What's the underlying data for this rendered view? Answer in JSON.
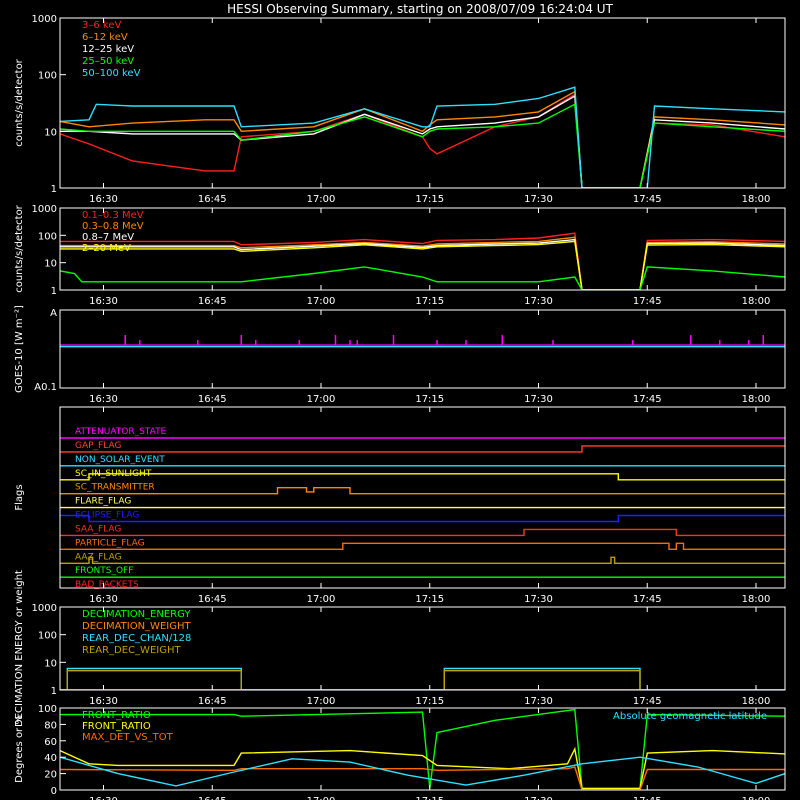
{
  "title": "HESSI Observing Summary, starting on 2008/07/09 16:24:04 UT",
  "time_ticks": [
    {
      "label": "16:30",
      "min": 6
    },
    {
      "label": "16:45",
      "min": 21
    },
    {
      "label": "17:00",
      "min": 36
    },
    {
      "label": "17:15",
      "min": 51
    },
    {
      "label": "17:30",
      "min": 66
    },
    {
      "label": "17:45",
      "min": 81
    },
    {
      "label": "18:00",
      "min": 96
    }
  ],
  "time_range_minutes": [
    0,
    100
  ],
  "colors": {
    "red": "#ff2020",
    "orange": "#ff8800",
    "white": "#ffffff",
    "yellow": "#ffff00",
    "green": "#00ff00",
    "cyan": "#30e0ff",
    "magenta": "#ff00ff",
    "blue": "#2020ff",
    "olive": "#c0a000",
    "darkorange": "#ff6a00"
  },
  "chart_data": [
    {
      "type": "line",
      "ylabel": "counts/s/detector",
      "yscale": "log",
      "ylim": [
        1,
        1000
      ],
      "yticks": [
        "1",
        "10",
        "100",
        "1000"
      ],
      "series": [
        {
          "name": "3–6 keV",
          "color": "#ff2020",
          "x": [
            0,
            4,
            10,
            20,
            24,
            25,
            35,
            42,
            50,
            51,
            52,
            60,
            66,
            71,
            72,
            80,
            82,
            90,
            100
          ],
          "y": [
            9,
            6,
            3,
            2,
            2,
            8,
            10,
            20,
            8,
            5,
            4,
            12,
            18,
            45,
            1,
            1,
            14,
            13,
            8
          ]
        },
        {
          "name": "6–12 keV",
          "color": "#ff8800",
          "x": [
            0,
            4,
            10,
            20,
            24,
            25,
            35,
            42,
            50,
            51,
            52,
            60,
            66,
            71,
            72,
            80,
            82,
            90,
            100
          ],
          "y": [
            15,
            12,
            14,
            16,
            16,
            10,
            12,
            25,
            10,
            13,
            16,
            18,
            22,
            50,
            1,
            1,
            18,
            16,
            13
          ]
        },
        {
          "name": "12–25 keV",
          "color": "#ffffff",
          "x": [
            0,
            4,
            10,
            20,
            24,
            25,
            35,
            42,
            50,
            51,
            52,
            60,
            66,
            71,
            72,
            80,
            82,
            90,
            100
          ],
          "y": [
            10,
            10,
            9,
            9,
            9,
            7,
            9,
            20,
            9,
            11,
            12,
            14,
            18,
            42,
            1,
            1,
            16,
            14,
            11
          ]
        },
        {
          "name": "25–50 keV",
          "color": "#00ff00",
          "x": [
            0,
            4,
            10,
            20,
            24,
            25,
            35,
            42,
            50,
            51,
            52,
            60,
            66,
            71,
            72,
            80,
            82,
            90,
            100
          ],
          "y": [
            11,
            10,
            10,
            10,
            10,
            7,
            10,
            18,
            8,
            10,
            11,
            12,
            14,
            30,
            1,
            1,
            14,
            12,
            10
          ]
        },
        {
          "name": "50–100 keV",
          "color": "#30e0ff",
          "x": [
            0,
            4,
            5,
            10,
            20,
            24,
            25,
            35,
            42,
            50,
            51,
            52,
            60,
            66,
            71,
            72,
            80,
            81,
            82,
            90,
            100
          ],
          "y": [
            15,
            16,
            30,
            28,
            28,
            28,
            12,
            14,
            25,
            12,
            12,
            28,
            30,
            38,
            60,
            1,
            1,
            1,
            28,
            25,
            22
          ]
        }
      ]
    },
    {
      "type": "line",
      "ylabel": "counts/s/detector",
      "yscale": "log",
      "ylim": [
        1,
        1000
      ],
      "yticks": [
        "1",
        "10",
        "100",
        "1000"
      ],
      "series": [
        {
          "name": "0.1–0.3 MeV",
          "color": "#ff2020",
          "x": [
            0,
            24,
            25,
            35,
            42,
            50,
            52,
            60,
            66,
            71,
            72,
            80,
            81,
            90,
            100
          ],
          "y": [
            60,
            60,
            45,
            55,
            70,
            50,
            65,
            70,
            80,
            120,
            1,
            1,
            65,
            70,
            60
          ]
        },
        {
          "name": "0.3–0.8 MeV",
          "color": "#ff8800",
          "x": [
            0,
            24,
            25,
            35,
            42,
            50,
            52,
            60,
            66,
            71,
            72,
            80,
            81,
            90,
            100
          ],
          "y": [
            42,
            42,
            35,
            45,
            55,
            40,
            48,
            55,
            60,
            85,
            1,
            1,
            55,
            58,
            48
          ]
        },
        {
          "name": "0.8–7 MeV",
          "color": "#ffffff",
          "x": [
            0,
            24,
            25,
            35,
            42,
            50,
            52,
            60,
            66,
            71,
            72,
            80,
            81,
            90,
            100
          ],
          "y": [
            38,
            38,
            30,
            40,
            50,
            36,
            42,
            48,
            52,
            70,
            1,
            1,
            50,
            52,
            42
          ]
        },
        {
          "name": "2–20 MeV",
          "color": "#ffff00",
          "x": [
            0,
            24,
            25,
            35,
            42,
            50,
            52,
            60,
            66,
            71,
            72,
            80,
            81,
            90,
            100
          ],
          "y": [
            32,
            32,
            26,
            35,
            45,
            32,
            38,
            42,
            46,
            60,
            1,
            1,
            44,
            46,
            38
          ]
        },
        {
          "name": "",
          "color": "#00ff00",
          "x": [
            0,
            2,
            3,
            24,
            25,
            35,
            42,
            50,
            52,
            60,
            66,
            71,
            72,
            80,
            81,
            90,
            100
          ],
          "y": [
            5,
            4,
            2,
            2,
            2,
            4,
            7,
            3,
            2,
            2,
            2,
            3,
            1,
            1,
            7,
            5,
            3
          ]
        }
      ]
    },
    {
      "type": "line",
      "ylabel": "GOES-10 [W m⁻²]",
      "ytick_top": "A",
      "ytick_bottom": "A0.1",
      "series": [
        {
          "name": "",
          "color": "#ff00ff",
          "x": [
            0,
            100
          ],
          "y": [
            0.55,
            0.55
          ]
        },
        {
          "name": "",
          "color": "#30e0ff",
          "x": [
            0,
            100
          ],
          "y": [
            0.53,
            0.53
          ]
        }
      ],
      "spikes_minutes": [
        9,
        11,
        19,
        25,
        27,
        33,
        38,
        40,
        41,
        46,
        52,
        56,
        61,
        68,
        79,
        87,
        91,
        95,
        97
      ]
    },
    {
      "type": "line",
      "ylabel": "Flags",
      "flags": [
        {
          "name": "ATTENUATOR_STATE",
          "color": "#ff00ff",
          "x": [
            0,
            100
          ],
          "y": [
            0,
            0
          ]
        },
        {
          "name": "GAP_FLAG",
          "color": "#ff4030",
          "x": [
            0,
            72,
            72,
            100
          ],
          "y": [
            0,
            0,
            1,
            1
          ]
        },
        {
          "name": "NON_SOLAR_EVENT",
          "color": "#30e0ff",
          "x": [
            0,
            100
          ],
          "y": [
            0,
            0
          ]
        },
        {
          "name": "SC_IN_SUNLIGHT",
          "color": "#ffff00",
          "x": [
            0,
            4,
            4,
            77,
            77,
            100
          ],
          "y": [
            0,
            0,
            1,
            1,
            0,
            0
          ]
        },
        {
          "name": "SC_TRANSMITTER",
          "color": "#ff8800",
          "x": [
            0,
            30,
            30,
            34,
            34,
            35,
            35,
            40,
            40,
            100
          ],
          "y": [
            0,
            0,
            1,
            1,
            0.3,
            0.3,
            1,
            1,
            0,
            0
          ]
        },
        {
          "name": "FLARE_FLAG",
          "color": "#ffff60",
          "x": [
            0,
            100
          ],
          "y": [
            0,
            0
          ]
        },
        {
          "name": "ECLIPSE_FLAG",
          "color": "#2020ff",
          "x": [
            0,
            4,
            4,
            77,
            77,
            100
          ],
          "y": [
            1,
            1,
            0,
            0,
            1,
            1
          ]
        },
        {
          "name": "SAA_FLAG",
          "color": "#ff3020",
          "x": [
            0,
            64,
            64,
            85,
            85,
            100
          ],
          "y": [
            0,
            0,
            1,
            1,
            0,
            0
          ]
        },
        {
          "name": "PARTICLE_FLAG",
          "color": "#ff6a00",
          "x": [
            0,
            39,
            39,
            72,
            72,
            84,
            84,
            85,
            85,
            86,
            86,
            100
          ],
          "y": [
            0,
            0,
            1,
            1,
            1,
            1,
            0,
            0,
            1,
            1,
            0,
            0
          ]
        },
        {
          "name": "AAZ_FLAG",
          "color": "#c0a000",
          "x": [
            0,
            4,
            4,
            4.5,
            4.5,
            76,
            76,
            76.5,
            76.5,
            100
          ],
          "y": [
            0,
            0,
            1,
            1,
            0,
            0,
            1,
            1,
            0,
            0
          ]
        },
        {
          "name": "FRONTS_OFF",
          "color": "#00ff00",
          "x": [
            0,
            100
          ],
          "y": [
            0,
            0
          ]
        },
        {
          "name": "BAD_PACKETS",
          "color": "#ff2020",
          "x": [
            0,
            100
          ],
          "y": [
            0,
            0
          ]
        }
      ]
    },
    {
      "type": "line",
      "ylabel": "DECIMATION ENERGY or weight",
      "yscale": "log",
      "ylim": [
        1,
        1000
      ],
      "yticks": [
        "1",
        "10",
        "100",
        "1000"
      ],
      "series": [
        {
          "name": "DECIMATION_ENERGY",
          "color": "#00ff00",
          "x": [
            0,
            100
          ],
          "y": [
            1,
            1
          ]
        },
        {
          "name": "DECIMATION_WEIGHT",
          "color": "#ff8800",
          "x": [
            0,
            100
          ],
          "y": [
            1,
            1
          ]
        },
        {
          "name": "REAR_DEC_CHAN/128",
          "color": "#30e0ff",
          "x": [
            0,
            1,
            1,
            25,
            25,
            53,
            53,
            80,
            80,
            100
          ],
          "y": [
            1,
            1,
            6,
            6,
            1,
            1,
            6,
            6,
            1,
            1
          ]
        },
        {
          "name": "REAR_DEC_WEIGHT",
          "color": "#c0a000",
          "x": [
            0,
            1,
            1,
            25,
            25,
            53,
            53,
            80,
            80,
            100
          ],
          "y": [
            1,
            1,
            5,
            5,
            1,
            1,
            5,
            5,
            1,
            1
          ]
        }
      ]
    },
    {
      "type": "line",
      "ylabel": "Degrees or %",
      "ylim": [
        0,
        100
      ],
      "yticks": [
        "0",
        "20",
        "40",
        "60",
        "80",
        "100"
      ],
      "annotation": "Absolute geomagnetic latitude",
      "series": [
        {
          "name": "FRONT_RATIO",
          "color": "#00ff00",
          "x": [
            0,
            24,
            25,
            50,
            51,
            52,
            60,
            71,
            72,
            80,
            81,
            100
          ],
          "y": [
            92,
            92,
            90,
            95,
            2,
            70,
            85,
            98,
            2,
            2,
            92,
            90
          ]
        },
        {
          "name": "FRONT_RATIO",
          "color": "#ffff00",
          "x": [
            0,
            4,
            8,
            24,
            25,
            40,
            50,
            52,
            62,
            70,
            71,
            72,
            80,
            81,
            90,
            100
          ],
          "y": [
            48,
            32,
            30,
            30,
            45,
            48,
            42,
            30,
            26,
            32,
            50,
            2,
            2,
            45,
            48,
            44
          ]
        },
        {
          "name": "MAX_DET_VS_TOT",
          "color": "#ff6a00",
          "x": [
            0,
            24,
            25,
            50,
            52,
            70,
            71,
            72,
            80,
            81,
            100
          ],
          "y": [
            25,
            24,
            26,
            26,
            24,
            26,
            28,
            0,
            0,
            25,
            25
          ]
        },
        {
          "name": "",
          "color": "#30e0ff",
          "x": [
            0,
            8,
            16,
            24,
            32,
            40,
            48,
            56,
            64,
            72,
            80,
            88,
            96,
            100
          ],
          "y": [
            40,
            20,
            5,
            22,
            38,
            34,
            18,
            6,
            18,
            32,
            40,
            28,
            8,
            20
          ]
        }
      ]
    }
  ]
}
